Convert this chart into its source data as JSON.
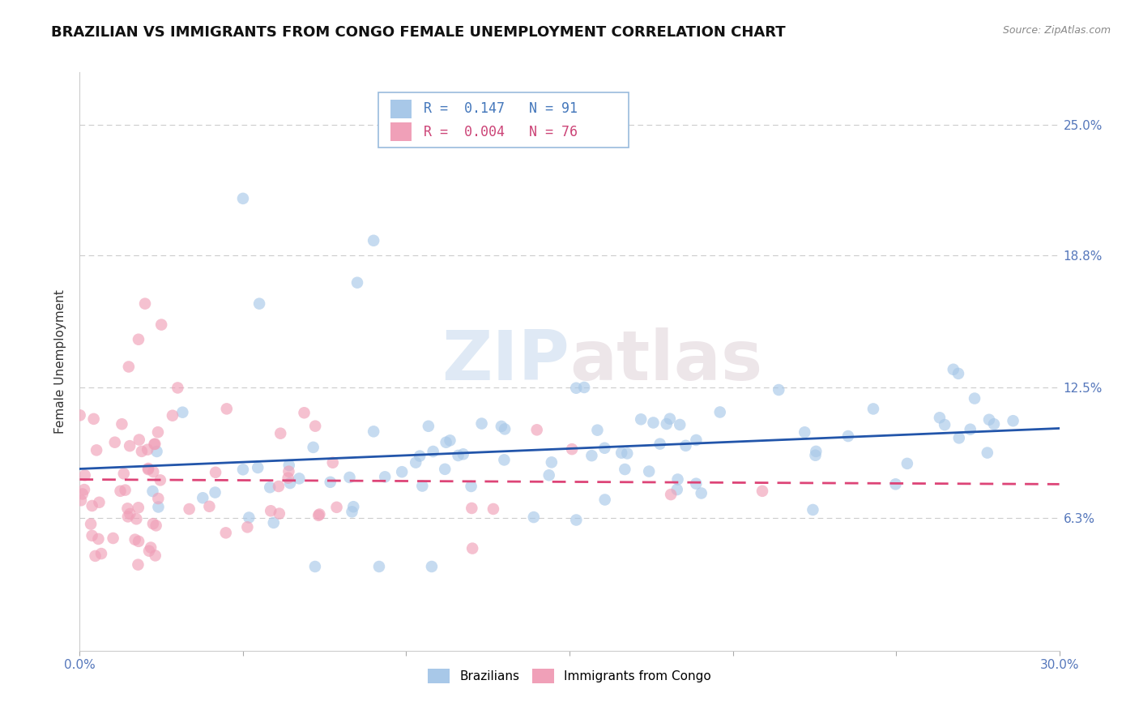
{
  "title": "BRAZILIAN VS IMMIGRANTS FROM CONGO FEMALE UNEMPLOYMENT CORRELATION CHART",
  "source": "Source: ZipAtlas.com",
  "ylabel": "Female Unemployment",
  "xlim": [
    0.0,
    0.3
  ],
  "ylim": [
    0.0,
    0.275
  ],
  "xtick_positions": [
    0.0,
    0.05,
    0.1,
    0.15,
    0.2,
    0.25,
    0.3
  ],
  "xtick_labels": [
    "0.0%",
    "",
    "",
    "",
    "",
    "",
    "30.0%"
  ],
  "ytick_values": [
    0.063,
    0.125,
    0.188,
    0.25
  ],
  "ytick_labels": [
    "6.3%",
    "12.5%",
    "18.8%",
    "25.0%"
  ],
  "blue_color": "#a8c8e8",
  "pink_color": "#f0a0b8",
  "blue_line_color": "#2255aa",
  "pink_line_color": "#dd4477",
  "legend_R_blue": "0.147",
  "legend_N_blue": "91",
  "legend_R_pink": "0.004",
  "legend_N_pink": "76",
  "watermark_zip": "ZIP",
  "watermark_atlas": "atlas",
  "title_fontsize": 13,
  "axis_label_fontsize": 11,
  "tick_fontsize": 11,
  "source_fontsize": 9,
  "scatter_size": 110,
  "scatter_alpha": 0.65,
  "seed": 17
}
